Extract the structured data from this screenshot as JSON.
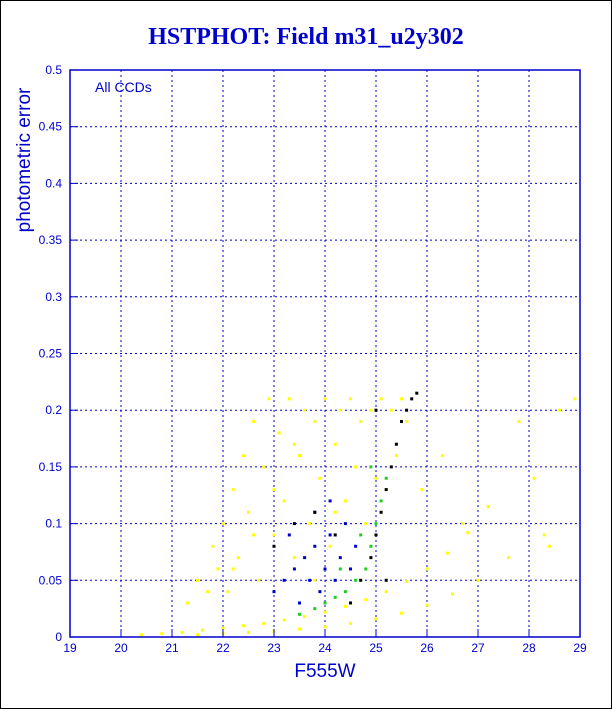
{
  "colors": {
    "axis": "#0000cc",
    "grid": "#0000cc",
    "yellow": "#ffff00",
    "blue": "#0000cc",
    "green": "#22cc22",
    "black": "#000000"
  },
  "chart_data": {
    "type": "scatter",
    "title": "HSTPHOT: Field m31_u2y302",
    "xlabel": "F555W",
    "ylabel": "photometric error",
    "annotation": "All CCDs",
    "xlim": [
      19,
      29
    ],
    "ylim": [
      0,
      0.5
    ],
    "grid": true,
    "x_ticks": [
      "19",
      "20",
      "21",
      "22",
      "23",
      "24",
      "25",
      "26",
      "27",
      "28",
      "29"
    ],
    "y_ticks": [
      "0",
      "0.05",
      "0.1",
      "0.15",
      "0.2",
      "0.25",
      "0.3",
      "0.35",
      "0.4",
      "0.45",
      "0.5"
    ],
    "series": [
      {
        "color": "yellow",
        "points": [
          [
            20.4,
            0.002
          ],
          [
            20.8,
            0.003
          ],
          [
            21.2,
            0.004
          ],
          [
            21.6,
            0.006
          ],
          [
            22.0,
            0.008
          ],
          [
            22.4,
            0.01
          ],
          [
            22.8,
            0.012
          ],
          [
            23.2,
            0.015
          ],
          [
            23.6,
            0.018
          ],
          [
            24.0,
            0.022
          ],
          [
            24.4,
            0.027
          ],
          [
            24.8,
            0.033
          ],
          [
            25.2,
            0.04
          ],
          [
            25.6,
            0.049
          ],
          [
            26.0,
            0.06
          ],
          [
            26.4,
            0.074
          ],
          [
            26.8,
            0.092
          ],
          [
            27.2,
            0.115
          ],
          [
            21.5,
            0.002
          ],
          [
            22.0,
            0.003
          ],
          [
            22.5,
            0.004
          ],
          [
            23.0,
            0.005
          ],
          [
            23.5,
            0.007
          ],
          [
            24.0,
            0.009
          ],
          [
            24.5,
            0.012
          ],
          [
            25.0,
            0.016
          ],
          [
            25.5,
            0.021
          ],
          [
            26.0,
            0.028
          ],
          [
            26.5,
            0.038
          ],
          [
            27.0,
            0.05
          ],
          [
            21.3,
            0.03
          ],
          [
            21.5,
            0.05
          ],
          [
            21.7,
            0.04
          ],
          [
            21.8,
            0.08
          ],
          [
            21.9,
            0.06
          ],
          [
            22.0,
            0.1
          ],
          [
            22.1,
            0.04
          ],
          [
            22.2,
            0.13
          ],
          [
            22.3,
            0.07
          ],
          [
            22.4,
            0.16
          ],
          [
            22.5,
            0.11
          ],
          [
            22.6,
            0.19
          ],
          [
            22.7,
            0.05
          ],
          [
            22.8,
            0.15
          ],
          [
            22.9,
            0.21
          ],
          [
            23.0,
            0.09
          ],
          [
            23.1,
            0.18
          ],
          [
            23.2,
            0.12
          ],
          [
            23.3,
            0.21
          ],
          [
            23.4,
            0.07
          ],
          [
            23.5,
            0.16
          ],
          [
            23.6,
            0.2
          ],
          [
            23.7,
            0.1
          ],
          [
            23.8,
            0.19
          ],
          [
            23.9,
            0.14
          ],
          [
            24.0,
            0.21
          ],
          [
            24.1,
            0.08
          ],
          [
            24.2,
            0.17
          ],
          [
            24.3,
            0.2
          ],
          [
            24.4,
            0.12
          ],
          [
            24.5,
            0.21
          ],
          [
            24.6,
            0.15
          ],
          [
            24.7,
            0.19
          ],
          [
            24.8,
            0.1
          ],
          [
            24.9,
            0.2
          ],
          [
            25.0,
            0.14
          ],
          [
            25.1,
            0.21
          ],
          [
            25.2,
            0.13
          ],
          [
            25.3,
            0.2
          ],
          [
            25.4,
            0.16
          ],
          [
            25.5,
            0.21
          ],
          [
            25.6,
            0.19
          ],
          [
            22.2,
            0.06
          ],
          [
            22.6,
            0.09
          ],
          [
            23.0,
            0.13
          ],
          [
            23.4,
            0.17
          ],
          [
            23.8,
            0.05
          ],
          [
            24.2,
            0.11
          ],
          [
            27.8,
            0.19
          ],
          [
            28.3,
            0.09
          ],
          [
            28.6,
            0.2
          ],
          [
            28.1,
            0.14
          ],
          [
            27.6,
            0.07
          ],
          [
            26.7,
            0.1
          ],
          [
            25.9,
            0.13
          ],
          [
            28.9,
            0.21
          ],
          [
            28.4,
            0.08
          ],
          [
            26.3,
            0.16
          ]
        ]
      },
      {
        "color": "blue",
        "points": [
          [
            23.0,
            0.04
          ],
          [
            23.2,
            0.05
          ],
          [
            23.4,
            0.06
          ],
          [
            23.5,
            0.03
          ],
          [
            23.6,
            0.07
          ],
          [
            23.7,
            0.05
          ],
          [
            23.8,
            0.08
          ],
          [
            23.9,
            0.04
          ],
          [
            24.0,
            0.06
          ],
          [
            24.1,
            0.09
          ],
          [
            24.2,
            0.05
          ],
          [
            24.3,
            0.07
          ],
          [
            24.4,
            0.1
          ],
          [
            24.5,
            0.06
          ],
          [
            24.6,
            0.08
          ],
          [
            23.3,
            0.09
          ],
          [
            23.8,
            0.11
          ],
          [
            24.1,
            0.12
          ]
        ]
      },
      {
        "color": "green",
        "points": [
          [
            23.5,
            0.02
          ],
          [
            23.8,
            0.025
          ],
          [
            24.0,
            0.03
          ],
          [
            24.2,
            0.035
          ],
          [
            24.4,
            0.04
          ],
          [
            24.6,
            0.05
          ],
          [
            24.8,
            0.06
          ],
          [
            24.9,
            0.08
          ],
          [
            25.0,
            0.1
          ],
          [
            25.1,
            0.12
          ],
          [
            25.2,
            0.14
          ],
          [
            24.7,
            0.09
          ],
          [
            24.3,
            0.06
          ],
          [
            24.9,
            0.15
          ]
        ]
      },
      {
        "color": "black",
        "points": [
          [
            23.0,
            0.08
          ],
          [
            23.4,
            0.1
          ],
          [
            23.8,
            0.11
          ],
          [
            24.2,
            0.09
          ],
          [
            24.5,
            0.03
          ],
          [
            24.7,
            0.05
          ],
          [
            24.9,
            0.07
          ],
          [
            25.0,
            0.09
          ],
          [
            25.1,
            0.11
          ],
          [
            25.2,
            0.13
          ],
          [
            25.3,
            0.15
          ],
          [
            25.4,
            0.17
          ],
          [
            25.5,
            0.19
          ],
          [
            25.6,
            0.2
          ],
          [
            25.7,
            0.21
          ],
          [
            25.8,
            0.215
          ],
          [
            25.2,
            0.05
          ],
          [
            25.0,
            0.2
          ]
        ]
      }
    ]
  }
}
